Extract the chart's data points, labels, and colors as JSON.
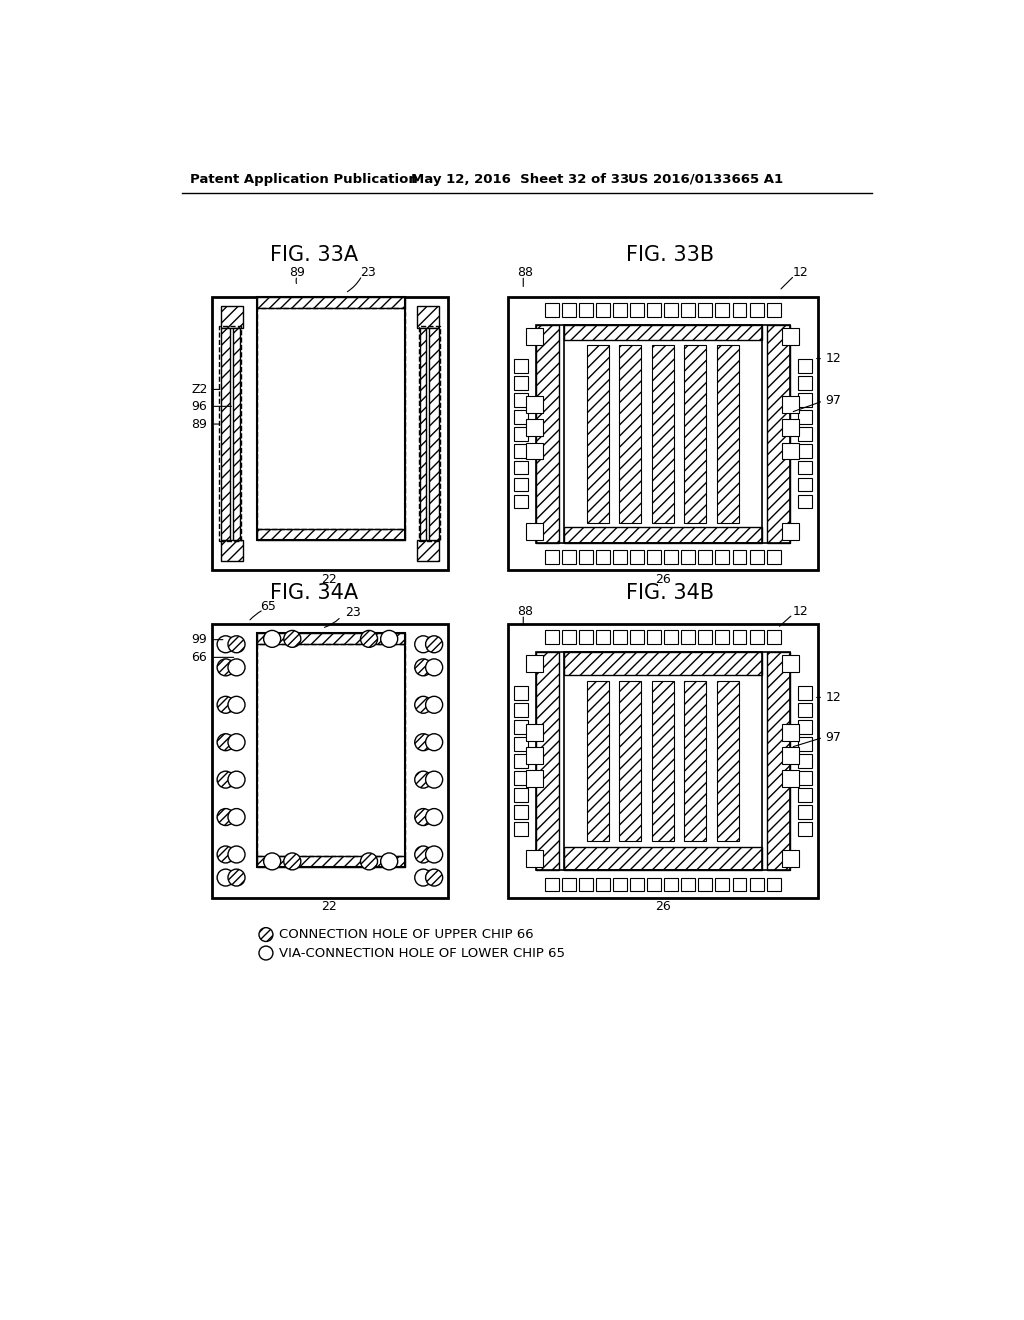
{
  "header_left": "Patent Application Publication",
  "header_mid": "May 12, 2016  Sheet 32 of 33",
  "header_right": "US 2016/0133665 A1",
  "fig33A_title": "FIG. 33A",
  "fig33B_title": "FIG. 33B",
  "fig34A_title": "FIG. 34A",
  "fig34B_title": "FIG. 34B",
  "legend_crossed": "CONNECTION HOLE OF UPPER CHIP 66",
  "legend_open": "VIA-CONNECTION HOLE OF LOWER CHIP 65",
  "bg_color": "#ffffff"
}
